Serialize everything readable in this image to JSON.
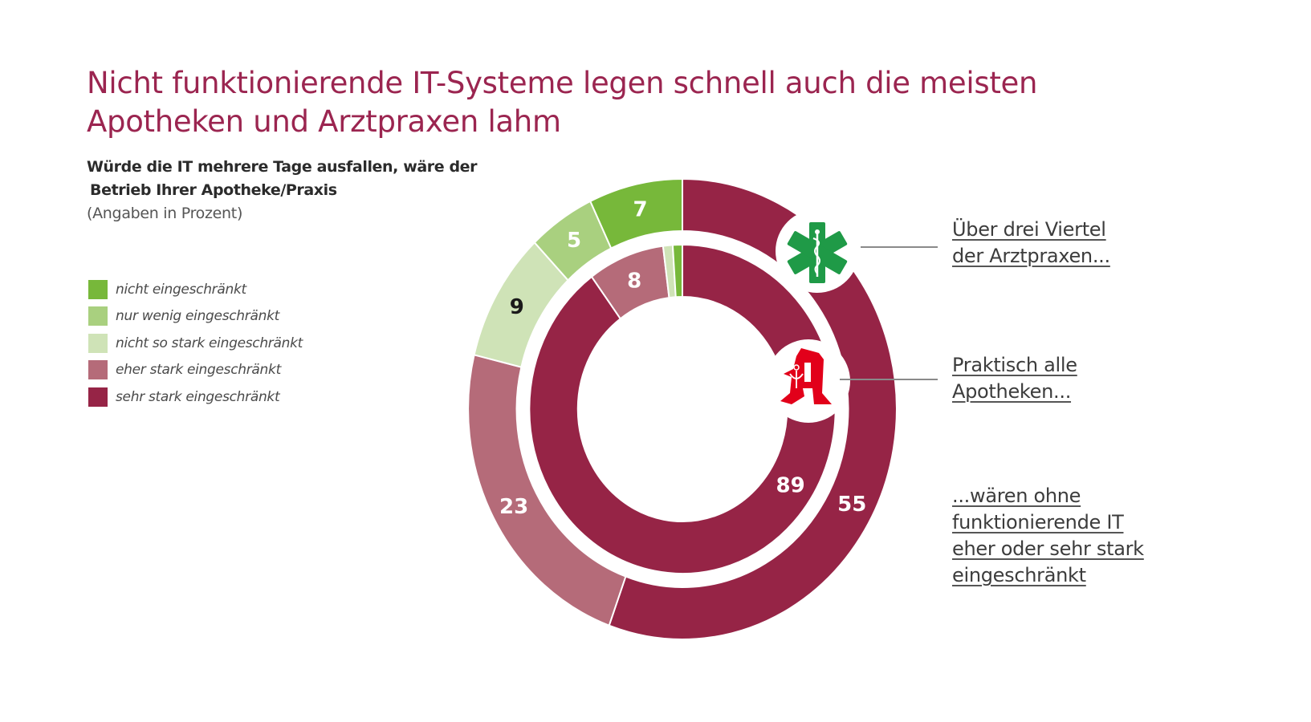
{
  "header": {
    "title_line1": "Nicht funktionierende IT-Systeme legen schnell auch die meisten",
    "title_line2": "Apotheken und Arztpraxen lahm",
    "subtitle_line1": "Würde die IT mehrere Tage ausfallen, wäre der",
    "subtitle_line2": "Betrieb Ihrer Apotheke/Praxis",
    "unit_note": "(Angaben in Prozent)"
  },
  "colors": {
    "title": "#9b2550",
    "sehr_stark": "#962446",
    "eher_stark": "#b56b79",
    "nicht_so_stark": "#cfe3b7",
    "nur_wenig": "#a9d07f",
    "nicht": "#77b83a",
    "star_of_life": "#1f9a47",
    "apotheke": "#e2001a"
  },
  "callouts": {
    "arzt": [
      "Über drei Viertel",
      "der Arztpraxen..."
    ],
    "apotheke": [
      "Praktisch alle",
      "Apotheken..."
    ],
    "summary": [
      "...wären ohne",
      "funktionierende IT",
      "eher oder sehr stark",
      "eingeschränkt"
    ]
  },
  "icons": {
    "outer_ring": "star-of-life-icon",
    "inner_ring": "apotheke-a-icon"
  },
  "chart_data": {
    "type": "pie",
    "subtype": "nested-donut",
    "title": "Nicht funktionierende IT-Systeme legen schnell auch die meisten Apotheken und Arztpraxen lahm",
    "subtitle": "Würde die IT mehrere Tage ausfallen, wäre der Betrieb Ihrer Apotheke/Praxis (Angaben in Prozent)",
    "categories": [
      "sehr stark eingeschränkt",
      "eher stark eingeschränkt",
      "nicht so stark eingeschränkt",
      "nur wenig eingeschränkt",
      "nicht eingeschränkt"
    ],
    "legend": {
      "placement": "left",
      "order": [
        "nicht eingeschränkt",
        "nur wenig eingeschränkt",
        "nicht so stark eingeschränkt",
        "eher stark eingeschränkt",
        "sehr stark eingeschränkt"
      ]
    },
    "series": [
      {
        "name": "Arztpraxen",
        "ring": "outer",
        "values": [
          55,
          23,
          9,
          5,
          7
        ],
        "labels": [
          "55",
          "23",
          "9",
          "5",
          "7"
        ]
      },
      {
        "name": "Apotheken",
        "ring": "inner",
        "values": [
          89,
          8,
          1,
          0,
          1
        ],
        "labels": [
          "89",
          "8",
          "",
          "",
          ""
        ]
      }
    ],
    "start_angle": "12 o'clock",
    "direction": "clockwise"
  }
}
